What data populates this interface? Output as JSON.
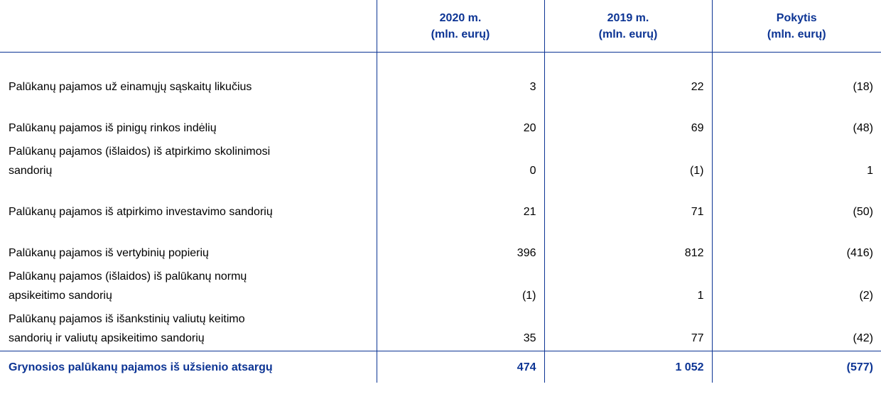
{
  "header": {
    "col_2020": "2020 m.",
    "col_2019": "2019 m.",
    "col_change": "Pokytis",
    "unit": "(mln. eurų)"
  },
  "rows": [
    {
      "label_lines": [
        "Palūkanų pajamos už einamųjų sąskaitų likučius"
      ],
      "v2020": "3",
      "v2019": "22",
      "change": "(18)"
    },
    {
      "label_lines": [
        "Palūkanų pajamos iš pinigų rinkos indėlių"
      ],
      "v2020": "20",
      "v2019": "69",
      "change": "(48)"
    },
    {
      "label_lines": [
        "Palūkanų pajamos (išlaidos) iš atpirkimo skolinimosi",
        "sandorių"
      ],
      "v2020": "0",
      "v2019": "(1)",
      "change": "1"
    },
    {
      "label_lines": [
        "Palūkanų pajamos iš atpirkimo investavimo sandorių"
      ],
      "v2020": "21",
      "v2019": "71",
      "change": "(50)"
    },
    {
      "label_lines": [
        "Palūkanų pajamos iš vertybinių popierių"
      ],
      "v2020": "396",
      "v2019": "812",
      "change": "(416)"
    },
    {
      "label_lines": [
        "Palūkanų pajamos (išlaidos) iš palūkanų normų",
        "apsikeitimo sandorių"
      ],
      "v2020": "(1)",
      "v2019": "1",
      "change": "(2)"
    },
    {
      "label_lines": [
        "Palūkanų pajamos iš išankstinių valiutų keitimo",
        "sandorių ir valiutų apsikeitimo sandorių"
      ],
      "v2020": "35",
      "v2019": "77",
      "change": "(42)"
    }
  ],
  "total": {
    "label": "Grynosios palūkanų pajamos iš užsienio atsargų",
    "v2020": "474",
    "v2019": "1 052",
    "change": "(577)"
  },
  "colors": {
    "accent": "#0c3494",
    "text": "#000000"
  }
}
